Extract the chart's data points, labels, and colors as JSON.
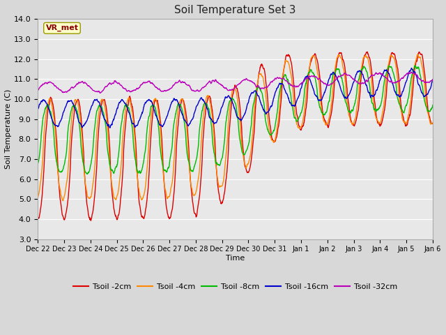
{
  "title": "Soil Temperature Set 3",
  "xlabel": "Time",
  "ylabel": "Soil Temperature (C)",
  "ylim": [
    3.0,
    14.0
  ],
  "yticks": [
    3.0,
    4.0,
    5.0,
    6.0,
    7.0,
    8.0,
    9.0,
    10.0,
    11.0,
    12.0,
    13.0,
    14.0
  ],
  "fig_bg": "#d8d8d8",
  "plot_bg": "#e8e8e8",
  "series_colors": {
    "Tsoil -2cm": "#dd0000",
    "Tsoil -4cm": "#ff8800",
    "Tsoil -8cm": "#00bb00",
    "Tsoil -16cm": "#0000cc",
    "Tsoil -32cm": "#bb00bb"
  },
  "legend_label": "VR_met",
  "legend_bg": "#ffffcc",
  "legend_border": "#999900",
  "tick_labels": [
    "Dec 22",
    "Dec 23",
    "Dec 24",
    "Dec 25",
    "Dec 26",
    "Dec 27",
    "Dec 28",
    "Dec 29",
    "Dec 30",
    "Dec 31",
    "Jan 1",
    "Jan 2",
    "Jan 3",
    "Jan 4",
    "Jan 5",
    "Jan 6"
  ]
}
